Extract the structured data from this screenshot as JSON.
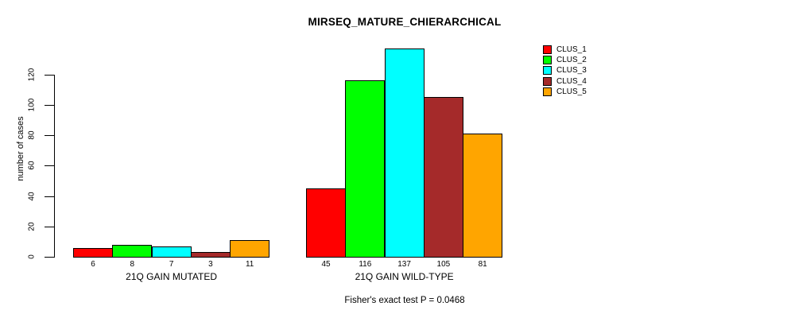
{
  "title": "MIRSEQ_MATURE_CHIERARCHICAL",
  "footer": "Fisher's exact test P = 0.0468",
  "y_axis": {
    "label": "number of cases"
  },
  "legend": {
    "position": "topright",
    "items": [
      {
        "label": "CLUS_1",
        "color": "#FF0000"
      },
      {
        "label": "CLUS_2",
        "color": "#00FF00"
      },
      {
        "label": "CLUS_3",
        "color": "#00FFFF"
      },
      {
        "label": "CLUS_4",
        "color": "#A52A2A"
      },
      {
        "label": "CLUS_5",
        "color": "#FFA500"
      }
    ]
  },
  "chart_data": {
    "type": "bar",
    "title": "MIRSEQ_MATURE_CHIERARCHICAL",
    "xlabel": "",
    "ylabel": "number of cases",
    "categories": [
      "21Q GAIN MUTATED",
      "21Q GAIN WILD-TYPE"
    ],
    "series": [
      {
        "name": "CLUS_1",
        "color": "#FF0000",
        "values": [
          6,
          45
        ]
      },
      {
        "name": "CLUS_2",
        "color": "#00FF00",
        "values": [
          8,
          116
        ]
      },
      {
        "name": "CLUS_3",
        "color": "#00FFFF",
        "values": [
          7,
          137
        ]
      },
      {
        "name": "CLUS_4",
        "color": "#A52A2A",
        "values": [
          3,
          105
        ]
      },
      {
        "name": "CLUS_5",
        "color": "#FFA500",
        "values": [
          11,
          81
        ]
      }
    ],
    "yticks": [
      0,
      20,
      40,
      60,
      80,
      100,
      120
    ],
    "ylim": [
      0,
      137
    ],
    "grid": false,
    "legend_position": "topright",
    "bar_value_labels_shown": true,
    "annotation": "Fisher's exact test P = 0.0468"
  }
}
